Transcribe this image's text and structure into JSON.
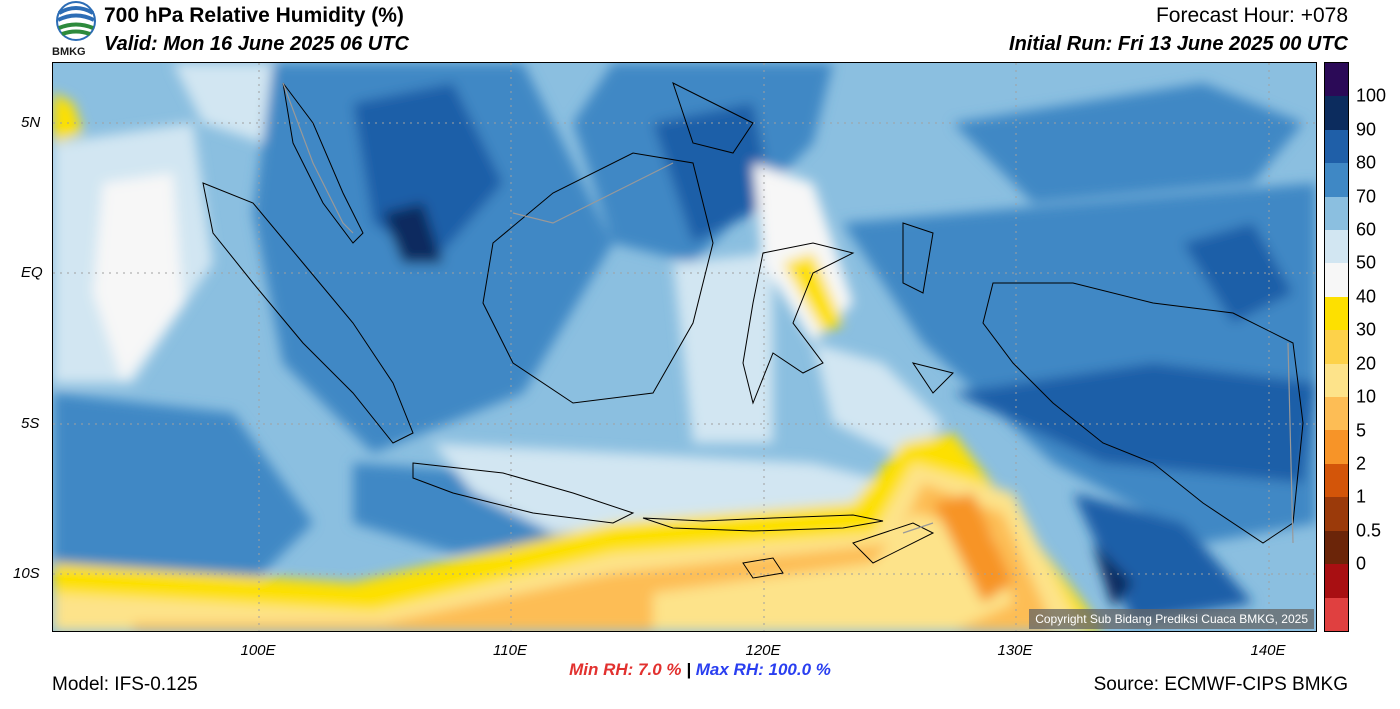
{
  "header": {
    "title": "700 hPa Relative Humidity (%)",
    "valid": "Valid: Mon 16 June 2025 06 UTC",
    "forecast_hour": "Forecast Hour: +078",
    "initial_run": "Initial Run: Fri 13 June 2025 00 UTC"
  },
  "logo": {
    "text": "BMKG"
  },
  "map": {
    "lat_labels": [
      "5N",
      "EQ",
      "5S",
      "10S"
    ],
    "lon_labels": [
      "100E",
      "110E",
      "120E",
      "130E",
      "140E"
    ],
    "copyright": "Copyright Sub Bidang Prediksi Cuaca BMKG, 2025"
  },
  "colorbar": {
    "labels": [
      "100",
      "90",
      "80",
      "70",
      "60",
      "50",
      "40",
      "30",
      "20",
      "10",
      "5",
      "2",
      "1",
      "0.5",
      "0"
    ],
    "colors": [
      "#2b0a57",
      "#0c2c5e",
      "#1f5fa8",
      "#3f88c5",
      "#8bbfe0",
      "#d2e6f2",
      "#f7f7f7",
      "#fde000",
      "#fdd24a",
      "#fde38a",
      "#fdbd55",
      "#f79428",
      "#d35509",
      "#9b3a0a",
      "#6b2509",
      "#a80f12",
      "#e04040"
    ]
  },
  "stats": {
    "min_label": "Min RH:",
    "min_value": "7.0 %",
    "separator": "|",
    "max_label": "Max RH: 100.0 %"
  },
  "footer": {
    "model": "Model: IFS-0.125",
    "source": "Source: ECMWF-CIPS BMKG"
  }
}
